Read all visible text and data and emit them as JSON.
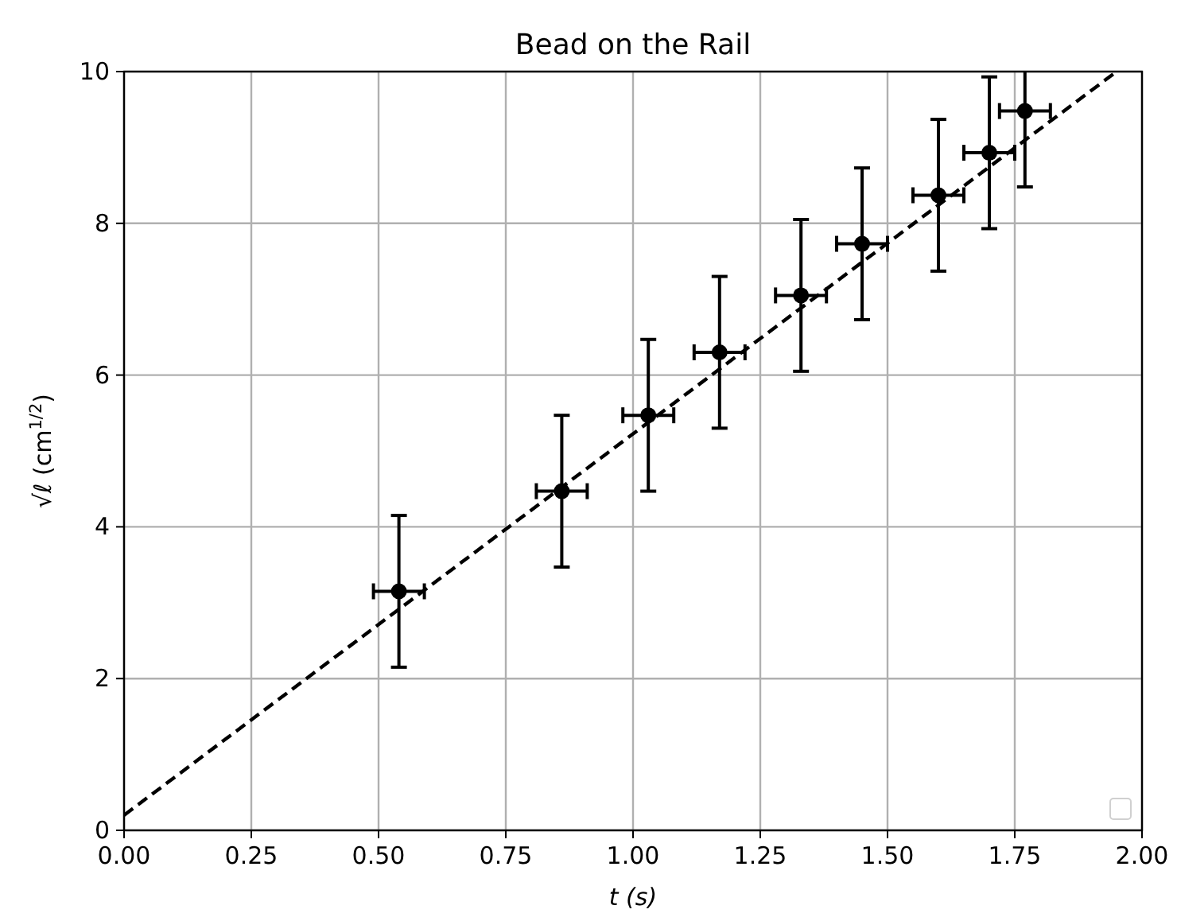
{
  "chart_data": {
    "type": "scatter",
    "title": "Bead on the Rail",
    "xlabel": "t (s)",
    "ylabel": "√ℓ (cm$^{1/2}$)",
    "xlim": [
      0,
      2
    ],
    "xticks": [
      {
        "value": 0,
        "label": "0.00"
      },
      {
        "value": 0.25,
        "label": "0.25"
      },
      {
        "value": 0.5,
        "label": "0.50"
      },
      {
        "value": 0.75,
        "label": "0.75"
      },
      {
        "value": 1,
        "label": "1.00"
      },
      {
        "value": 1.25,
        "label": "1.25"
      },
      {
        "value": 1.5,
        "label": "1.50"
      },
      {
        "value": 1.75,
        "label": "1.75"
      },
      {
        "value": 2,
        "label": "2.00"
      }
    ],
    "ylim": [
      0,
      10
    ],
    "yticks": [
      0,
      2,
      4,
      6,
      8,
      10
    ],
    "grid": true,
    "series": [
      {
        "color": "#000000",
        "marker": "circle",
        "x": [
          0.54,
          0.86,
          1.03,
          1.17,
          1.33,
          1.45,
          1.6,
          1.7,
          1.77
        ],
        "values": [
          3.15,
          4.47,
          5.47,
          6.3,
          7.05,
          7.73,
          8.37,
          8.93,
          9.48
        ],
        "errors": [
          1,
          1,
          1,
          1,
          1,
          1,
          1,
          1,
          1
        ],
        "xerrors": [
          0.05,
          0.05,
          0.05,
          0.05,
          0.05,
          0.05,
          0.05,
          0.05,
          0.05
        ]
      },
      {
        "type": "line",
        "color": "#000000",
        "line_style": "dashed",
        "x": [
          0,
          1.95
        ],
        "values": [
          0.2,
          10
        ]
      }
    ]
  }
}
